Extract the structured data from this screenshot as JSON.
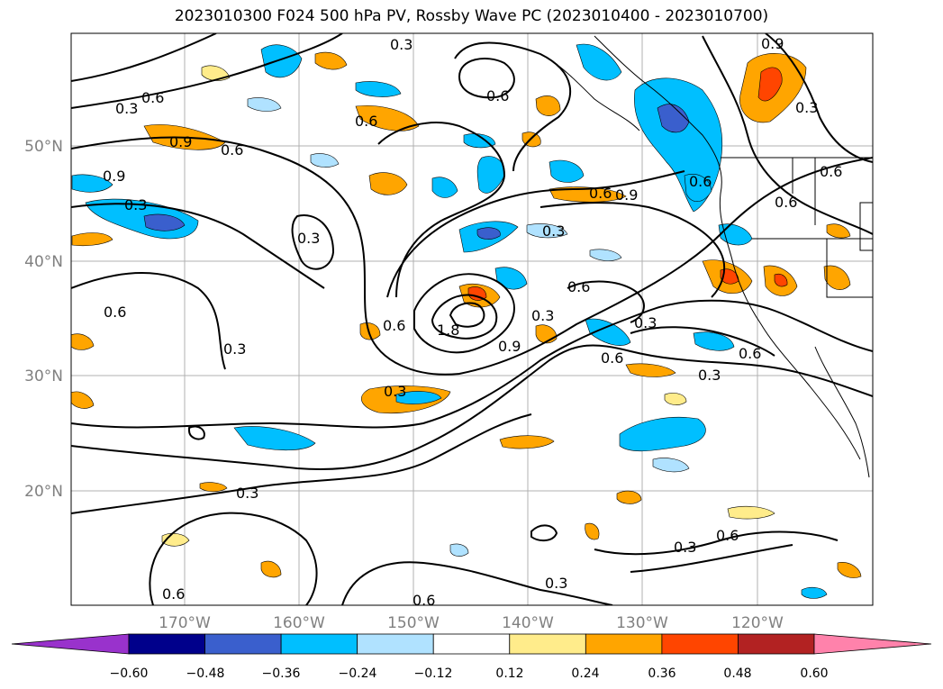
{
  "title": "2023010300 F024 500 hPa PV, Rossby Wave PC (2023010400 - 2023010700)",
  "lat_labels": [
    "50°N",
    "40°N",
    "30°N",
    "20°N"
  ],
  "lon_labels": [
    "170°W",
    "160°W",
    "150°W",
    "140°W",
    "130°W",
    "120°W"
  ],
  "contour_labels": [
    "0.9",
    "0.3",
    "0.6",
    "0.6",
    "0.3",
    "0.6",
    "0.9",
    "0.6",
    "0.9",
    "0.3",
    "0.3",
    "0.6",
    "0.9",
    "0.6",
    "0.3",
    "0.6",
    "0.6",
    "0.3",
    "1.8",
    "0.6",
    "0.9",
    "0.3",
    "0.6",
    "0.3",
    "0.3",
    "0.6",
    "0.6",
    "0.3",
    "0.6",
    "0.3",
    "0.3",
    "0.6",
    "0.6",
    "0.3",
    "0.3",
    "0.6"
  ],
  "colorbar": {
    "ticks": [
      "−0.60",
      "−0.48",
      "−0.36",
      "−0.24",
      "−0.12",
      "0.12",
      "0.24",
      "0.36",
      "0.48",
      "0.60"
    ],
    "colors": [
      "#9932CC",
      "#00008B",
      "#3A5FCD",
      "#00BFFF",
      "#B0E2FF",
      "#FFFFFF",
      "#FFEC8B",
      "#FFA500",
      "#FF4500",
      "#B22222",
      "#FF82AB"
    ]
  }
}
